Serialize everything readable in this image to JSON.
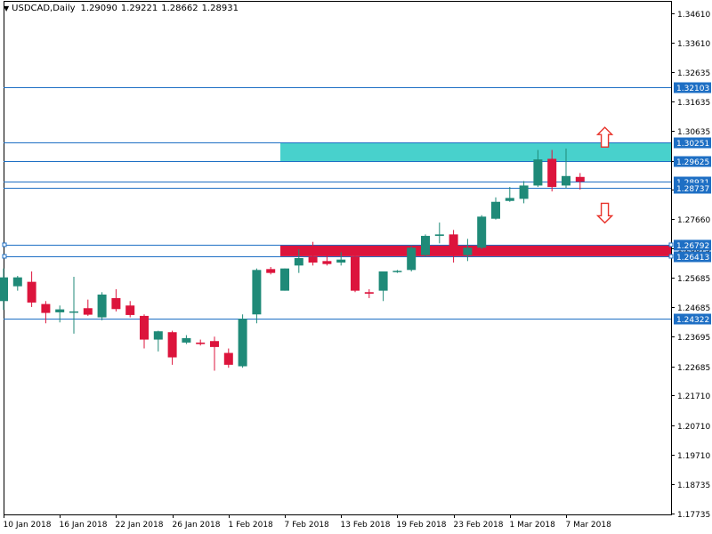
{
  "header": {
    "symbol_label": "USDCAD,Daily",
    "open": "1.29090",
    "high": "1.29221",
    "low": "1.28662",
    "close": "1.28931"
  },
  "colors": {
    "bull": "#1f8a78",
    "bear": "#dc143c",
    "line": "#1e6fc4",
    "resistance_zone": "#48d1cc",
    "support_zone": "#dc143c",
    "arrow": "#e8322a",
    "current_price_label": "#1e6fc4"
  },
  "chart_data": {
    "type": "candlestick",
    "title": "",
    "ylim": [
      1.1773,
      1.3461
    ],
    "y_ticks": [
      "1.34610",
      "1.33610",
      "1.32635",
      "1.31635",
      "1.30635",
      "1.29625",
      "1.28650",
      "1.27660",
      "1.26675",
      "1.25685",
      "1.24685",
      "1.23695",
      "1.22685",
      "1.21710",
      "1.20710",
      "1.19710",
      "1.18735",
      "1.17735"
    ],
    "x_ticks": [
      "10 Jan 2018",
      "16 Jan 2018",
      "22 Jan 2018",
      "26 Jan 2018",
      "1 Feb 2018",
      "7 Feb 2018",
      "13 Feb 2018",
      "19 Feb 2018",
      "23 Feb 2018",
      "1 Mar 2018",
      "7 Mar 2018"
    ],
    "candles": [
      {
        "o": 1.249,
        "h": 1.26,
        "l": 1.246,
        "c": 1.257
      },
      {
        "o": 1.254,
        "h": 1.2575,
        "l": 1.2525,
        "c": 1.257
      },
      {
        "o": 1.2555,
        "h": 1.259,
        "l": 1.247,
        "c": 1.2485
      },
      {
        "o": 1.248,
        "h": 1.249,
        "l": 1.2415,
        "c": 1.245
      },
      {
        "o": 1.2452,
        "h": 1.2475,
        "l": 1.2418,
        "c": 1.2462
      },
      {
        "o": 1.2455,
        "h": 1.2572,
        "l": 1.238,
        "c": 1.2455
      },
      {
        "o": 1.2466,
        "h": 1.2495,
        "l": 1.244,
        "c": 1.2444
      },
      {
        "o": 1.2435,
        "h": 1.252,
        "l": 1.2425,
        "c": 1.2512
      },
      {
        "o": 1.25,
        "h": 1.253,
        "l": 1.2455,
        "c": 1.2463
      },
      {
        "o": 1.2475,
        "h": 1.249,
        "l": 1.2435,
        "c": 1.2443
      },
      {
        "o": 1.244,
        "h": 1.2445,
        "l": 1.233,
        "c": 1.236
      },
      {
        "o": 1.236,
        "h": 1.239,
        "l": 1.232,
        "c": 1.2388
      },
      {
        "o": 1.2385,
        "h": 1.239,
        "l": 1.2275,
        "c": 1.23
      },
      {
        "o": 1.235,
        "h": 1.2375,
        "l": 1.2345,
        "c": 1.2365
      },
      {
        "o": 1.235,
        "h": 1.236,
        "l": 1.234,
        "c": 1.2345
      },
      {
        "o": 1.2355,
        "h": 1.237,
        "l": 1.2255,
        "c": 1.2335
      },
      {
        "o": 1.2315,
        "h": 1.233,
        "l": 1.2265,
        "c": 1.2275
      },
      {
        "o": 1.227,
        "h": 1.2445,
        "l": 1.2265,
        "c": 1.243
      },
      {
        "o": 1.2445,
        "h": 1.26,
        "l": 1.2415,
        "c": 1.2595
      },
      {
        "o": 1.2598,
        "h": 1.2605,
        "l": 1.258,
        "c": 1.2585
      },
      {
        "o": 1.2525,
        "h": 1.26,
        "l": 1.2525,
        "c": 1.26
      },
      {
        "o": 1.261,
        "h": 1.2665,
        "l": 1.2585,
        "c": 1.2635
      },
      {
        "o": 1.264,
        "h": 1.269,
        "l": 1.261,
        "c": 1.262
      },
      {
        "o": 1.2625,
        "h": 1.265,
        "l": 1.261,
        "c": 1.2615
      },
      {
        "o": 1.262,
        "h": 1.2655,
        "l": 1.261,
        "c": 1.263
      },
      {
        "o": 1.264,
        "h": 1.2675,
        "l": 1.252,
        "c": 1.2525
      },
      {
        "o": 1.252,
        "h": 1.253,
        "l": 1.25,
        "c": 1.2515
      },
      {
        "o": 1.2525,
        "h": 1.259,
        "l": 1.249,
        "c": 1.259
      },
      {
        "o": 1.2588,
        "h": 1.2595,
        "l": 1.2585,
        "c": 1.2592
      },
      {
        "o": 1.2595,
        "h": 1.2675,
        "l": 1.259,
        "c": 1.267
      },
      {
        "o": 1.2645,
        "h": 1.2715,
        "l": 1.264,
        "c": 1.271
      },
      {
        "o": 1.271,
        "h": 1.2755,
        "l": 1.2685,
        "c": 1.2715
      },
      {
        "o": 1.2715,
        "h": 1.273,
        "l": 1.262,
        "c": 1.2645
      },
      {
        "o": 1.2645,
        "h": 1.27,
        "l": 1.2625,
        "c": 1.267
      },
      {
        "o": 1.267,
        "h": 1.278,
        "l": 1.2665,
        "c": 1.2775
      },
      {
        "o": 1.2768,
        "h": 1.284,
        "l": 1.2765,
        "c": 1.2825
      },
      {
        "o": 1.2828,
        "h": 1.2875,
        "l": 1.2825,
        "c": 1.2838
      },
      {
        "o": 1.2835,
        "h": 1.2895,
        "l": 1.282,
        "c": 1.288
      },
      {
        "o": 1.288,
        "h": 1.3,
        "l": 1.2875,
        "c": 1.2968
      },
      {
        "o": 1.297,
        "h": 1.3,
        "l": 1.286,
        "c": 1.2875
      },
      {
        "o": 1.288,
        "h": 1.3005,
        "l": 1.287,
        "c": 1.2912
      },
      {
        "o": 1.2909,
        "h": 1.2922,
        "l": 1.2866,
        "c": 1.2893
      }
    ],
    "horizontal_lines": [
      {
        "price": 1.32103,
        "label": "1.32103"
      },
      {
        "price": 1.30251,
        "label": "1.30251"
      },
      {
        "price": 1.29625,
        "label": "1.29625"
      },
      {
        "price": 1.28931,
        "label": "1.28931"
      },
      {
        "price": 1.28737,
        "label": "1.28737"
      },
      {
        "price": 1.26792,
        "label": "1.26792"
      },
      {
        "price": 1.26413,
        "label": "1.26413"
      },
      {
        "price": 1.24322,
        "label": "1.24322"
      }
    ],
    "zones": [
      {
        "type": "resistance",
        "from_index": 20,
        "high": 1.30251,
        "low": 1.29625
      },
      {
        "type": "support",
        "from_index": 20,
        "high": 1.26792,
        "low": 1.26413
      }
    ],
    "arrows": [
      {
        "direction": "up",
        "index": 42,
        "price": 1.304
      },
      {
        "direction": "down",
        "index": 42,
        "price": 1.279
      }
    ],
    "legend": "none",
    "grid": false
  }
}
